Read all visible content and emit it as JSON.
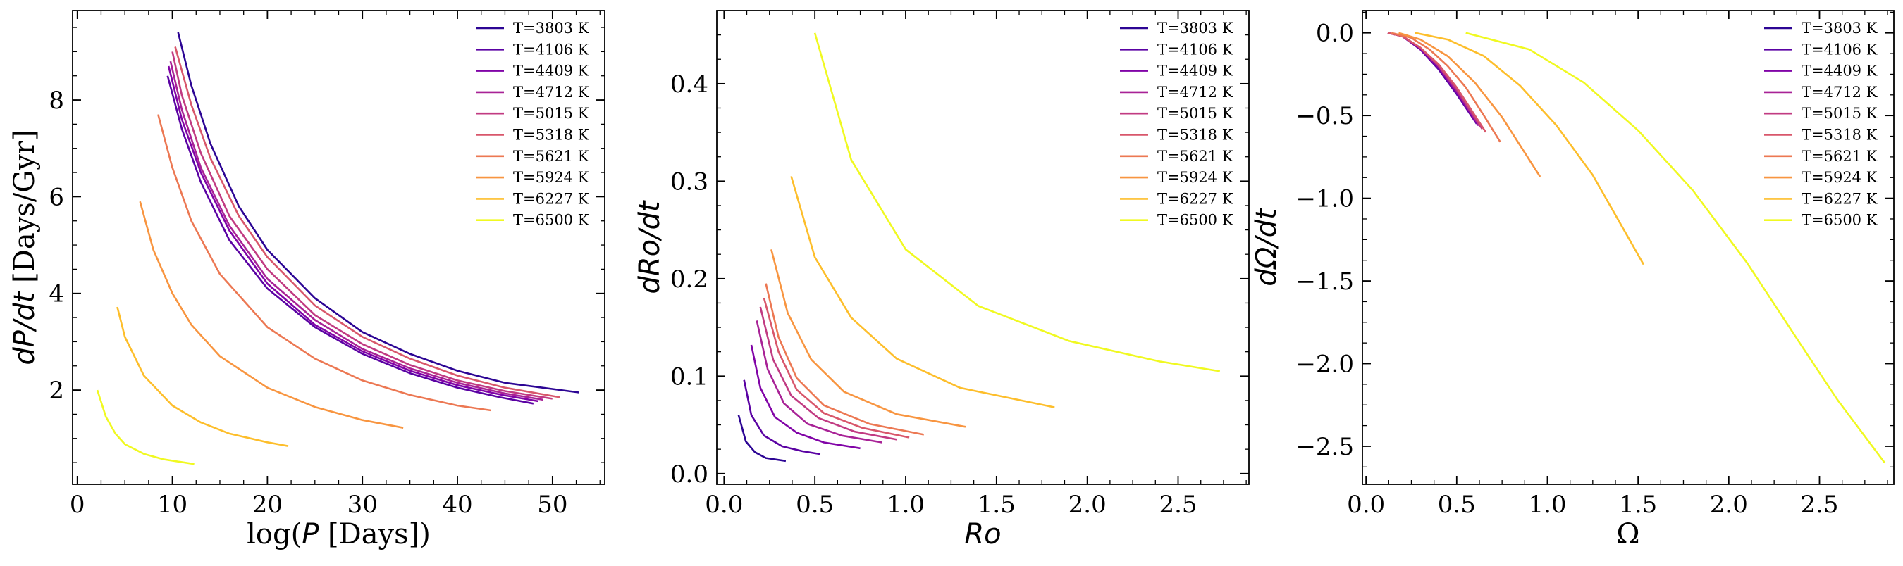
{
  "legend_labels": [
    "T=3803 K",
    "T=4106 K",
    "T=4409 K",
    "T=4712 K",
    "T=5015 K",
    "T=5318 K",
    "T=5621 K",
    "T=5924 K",
    "T=6227 K",
    "T=6500 K"
  ],
  "colors": [
    "#2c0594",
    "#5a02a3",
    "#8104a7",
    "#a82296",
    "#c13b82",
    "#d8576b",
    "#ec7853",
    "#f89540",
    "#fdbe2b",
    "#f0f921"
  ],
  "chart_data": [
    {
      "type": "line",
      "xlabel": "log($P$ [Days])",
      "ylabel": "$dP/dt$ [Days/Gyr]",
      "xlim": [
        -0.5,
        55.5
      ],
      "ylim": [
        0.05,
        9.85
      ],
      "xticks": [
        0,
        10,
        20,
        30,
        40,
        50
      ],
      "xtick_labels": [
        "0",
        "10",
        "20",
        "30",
        "40",
        "50"
      ],
      "yticks": [
        2,
        4,
        6,
        8
      ],
      "ytick_labels": [
        "2",
        "4",
        "6",
        "8"
      ],
      "grid": false,
      "legend_position": "upper right",
      "series": [
        {
          "name": "T=3803 K",
          "x": [
            10.6,
            12,
            14,
            17,
            20,
            25,
            30,
            35,
            40,
            45,
            52.8
          ],
          "y": [
            9.4,
            8.3,
            7.1,
            5.8,
            4.9,
            3.9,
            3.2,
            2.75,
            2.4,
            2.15,
            1.95
          ]
        },
        {
          "name": "T=4106 K",
          "x": [
            9.5,
            11,
            13,
            16,
            20,
            25,
            30,
            35,
            40,
            44.5,
            48
          ],
          "y": [
            8.5,
            7.4,
            6.3,
            5.1,
            4.1,
            3.3,
            2.75,
            2.35,
            2.05,
            1.85,
            1.72
          ]
        },
        {
          "name": "T=4409 K",
          "x": [
            9.6,
            11,
            13,
            16,
            20,
            25,
            30,
            35,
            40,
            44.7,
            48.5
          ],
          "y": [
            8.7,
            7.6,
            6.5,
            5.3,
            4.2,
            3.35,
            2.8,
            2.4,
            2.1,
            1.9,
            1.77
          ]
        },
        {
          "name": "T=4712 K",
          "x": [
            9.8,
            11,
            13,
            16,
            20,
            25,
            30,
            35,
            40,
            45,
            49
          ],
          "y": [
            8.8,
            7.8,
            6.6,
            5.4,
            4.3,
            3.45,
            2.85,
            2.45,
            2.15,
            1.93,
            1.8
          ]
        },
        {
          "name": "T=5015 K",
          "x": [
            10,
            11,
            13,
            16,
            20,
            25,
            30,
            35,
            40,
            45,
            50
          ],
          "y": [
            9.0,
            8.1,
            6.9,
            5.6,
            4.5,
            3.55,
            2.95,
            2.52,
            2.2,
            1.98,
            1.82
          ]
        },
        {
          "name": "T=5318 K",
          "x": [
            10.3,
            12,
            14,
            17,
            20,
            25,
            30,
            35,
            40,
            45,
            50.8
          ],
          "y": [
            9.1,
            7.9,
            6.8,
            5.6,
            4.75,
            3.75,
            3.1,
            2.65,
            2.3,
            2.05,
            1.85
          ]
        },
        {
          "name": "T=5621 K",
          "x": [
            8.5,
            10,
            12,
            15,
            20,
            25,
            30,
            35,
            40,
            43.5
          ],
          "y": [
            7.7,
            6.6,
            5.5,
            4.4,
            3.3,
            2.65,
            2.2,
            1.9,
            1.68,
            1.58
          ]
        },
        {
          "name": "T=5924 K",
          "x": [
            6.6,
            8,
            10,
            12,
            15,
            20,
            25,
            30,
            34.3
          ],
          "y": [
            5.9,
            4.9,
            4.0,
            3.35,
            2.7,
            2.05,
            1.65,
            1.38,
            1.22
          ]
        },
        {
          "name": "T=6227 K",
          "x": [
            4.2,
            5,
            7,
            10,
            13,
            16,
            20,
            22.2
          ],
          "y": [
            3.72,
            3.1,
            2.3,
            1.68,
            1.33,
            1.1,
            0.92,
            0.84
          ]
        },
        {
          "name": "T=6500 K",
          "x": [
            2.1,
            3,
            4,
            5,
            7,
            9,
            12.3
          ],
          "y": [
            2.0,
            1.45,
            1.1,
            0.88,
            0.68,
            0.57,
            0.47
          ]
        }
      ]
    },
    {
      "type": "line",
      "xlabel": "$Ro$",
      "ylabel": "$dRo/dt$",
      "xlim": [
        -0.04,
        2.89
      ],
      "ylim": [
        -0.011,
        0.475
      ],
      "xticks": [
        0,
        0.5,
        1,
        1.5,
        2,
        2.5
      ],
      "xtick_labels": [
        "0.0",
        "0.5",
        "1.0",
        "1.5",
        "2.0",
        "2.5"
      ],
      "yticks": [
        0,
        0.1,
        0.2,
        0.3,
        0.4
      ],
      "ytick_labels": [
        "0.0",
        "0.1",
        "0.2",
        "0.3",
        "0.4"
      ],
      "grid": false,
      "legend_position": "upper right",
      "series": [
        {
          "name": "T=3803 K",
          "x": [
            0.08,
            0.12,
            0.17,
            0.23,
            0.34
          ],
          "y": [
            0.06,
            0.033,
            0.022,
            0.016,
            0.013
          ]
        },
        {
          "name": "T=4106 K",
          "x": [
            0.11,
            0.15,
            0.22,
            0.32,
            0.43,
            0.53
          ],
          "y": [
            0.096,
            0.06,
            0.039,
            0.028,
            0.023,
            0.02
          ]
        },
        {
          "name": "T=4409 K",
          "x": [
            0.15,
            0.2,
            0.28,
            0.4,
            0.55,
            0.75
          ],
          "y": [
            0.132,
            0.088,
            0.058,
            0.042,
            0.032,
            0.026
          ]
        },
        {
          "name": "T=4712 K",
          "x": [
            0.18,
            0.24,
            0.33,
            0.46,
            0.65,
            0.87
          ],
          "y": [
            0.157,
            0.107,
            0.072,
            0.051,
            0.039,
            0.032
          ]
        },
        {
          "name": "T=5015 K",
          "x": [
            0.2,
            0.27,
            0.37,
            0.52,
            0.72,
            0.95
          ],
          "y": [
            0.171,
            0.117,
            0.08,
            0.057,
            0.043,
            0.035
          ]
        },
        {
          "name": "T=5318 K",
          "x": [
            0.22,
            0.3,
            0.4,
            0.55,
            0.76,
            1.02
          ],
          "y": [
            0.18,
            0.125,
            0.086,
            0.062,
            0.047,
            0.037
          ]
        },
        {
          "name": "T=5621 K",
          "x": [
            0.23,
            0.3,
            0.4,
            0.55,
            0.8,
            1.1
          ],
          "y": [
            0.195,
            0.14,
            0.098,
            0.07,
            0.051,
            0.04
          ]
        },
        {
          "name": "T=5924 K",
          "x": [
            0.26,
            0.35,
            0.48,
            0.66,
            0.95,
            1.33
          ],
          "y": [
            0.23,
            0.165,
            0.117,
            0.084,
            0.061,
            0.048
          ]
        },
        {
          "name": "T=6227 K",
          "x": [
            0.37,
            0.5,
            0.7,
            0.95,
            1.3,
            1.82
          ],
          "y": [
            0.305,
            0.222,
            0.16,
            0.118,
            0.088,
            0.068
          ]
        },
        {
          "name": "T=6500 K",
          "x": [
            0.5,
            0.7,
            1.0,
            1.4,
            1.9,
            2.4,
            2.73
          ],
          "y": [
            0.452,
            0.322,
            0.23,
            0.172,
            0.136,
            0.115,
            0.105
          ]
        }
      ]
    },
    {
      "type": "line",
      "xlabel": "Ω",
      "ylabel": "$dΩ/dt$",
      "xlim": [
        -0.02,
        2.91
      ],
      "ylim": [
        -2.73,
        0.135
      ],
      "xticks": [
        0,
        0.5,
        1,
        1.5,
        2,
        2.5
      ],
      "xtick_labels": [
        "0.0",
        "0.5",
        "1.0",
        "1.5",
        "2.0",
        "2.5"
      ],
      "yticks": [
        0,
        -0.5,
        -1,
        -1.5,
        -2,
        -2.5
      ],
      "ytick_labels": [
        "0.0",
        "−0.5",
        "−1.0",
        "−1.5",
        "−2.0",
        "−2.5"
      ],
      "grid": false,
      "legend_position": "upper right",
      "series": [
        {
          "name": "T=3803 K",
          "x": [
            0.12,
            0.2,
            0.3,
            0.4,
            0.5,
            0.6
          ],
          "y": [
            0.0,
            -0.02,
            -0.1,
            -0.22,
            -0.37,
            -0.53
          ]
        },
        {
          "name": "T=4106 K",
          "x": [
            0.12,
            0.2,
            0.3,
            0.4,
            0.5,
            0.61
          ],
          "y": [
            0.0,
            -0.02,
            -0.1,
            -0.22,
            -0.37,
            -0.55
          ]
        },
        {
          "name": "T=4409 K",
          "x": [
            0.12,
            0.2,
            0.3,
            0.4,
            0.5,
            0.62
          ],
          "y": [
            0.0,
            -0.02,
            -0.1,
            -0.21,
            -0.36,
            -0.56
          ]
        },
        {
          "name": "T=4712 K",
          "x": [
            0.12,
            0.2,
            0.3,
            0.4,
            0.5,
            0.63
          ],
          "y": [
            0.0,
            -0.02,
            -0.09,
            -0.2,
            -0.35,
            -0.57
          ]
        },
        {
          "name": "T=5015 K",
          "x": [
            0.12,
            0.2,
            0.3,
            0.4,
            0.5,
            0.64
          ],
          "y": [
            0.0,
            -0.02,
            -0.09,
            -0.2,
            -0.34,
            -0.58
          ]
        },
        {
          "name": "T=5318 K",
          "x": [
            0.12,
            0.2,
            0.3,
            0.4,
            0.5,
            0.66
          ],
          "y": [
            0.0,
            -0.02,
            -0.09,
            -0.19,
            -0.33,
            -0.6
          ]
        },
        {
          "name": "T=5621 K",
          "x": [
            0.14,
            0.25,
            0.35,
            0.45,
            0.55,
            0.65,
            0.74
          ],
          "y": [
            0.0,
            -0.03,
            -0.1,
            -0.2,
            -0.33,
            -0.5,
            -0.66
          ]
        },
        {
          "name": "T=5924 K",
          "x": [
            0.18,
            0.3,
            0.45,
            0.6,
            0.75,
            0.96
          ],
          "y": [
            0.0,
            -0.04,
            -0.14,
            -0.3,
            -0.51,
            -0.87
          ]
        },
        {
          "name": "T=6227 K",
          "x": [
            0.27,
            0.45,
            0.65,
            0.85,
            1.05,
            1.25,
            1.53
          ],
          "y": [
            0.0,
            -0.04,
            -0.14,
            -0.32,
            -0.56,
            -0.86,
            -1.4
          ]
        },
        {
          "name": "T=6500 K",
          "x": [
            0.55,
            0.9,
            1.2,
            1.5,
            1.8,
            2.1,
            2.4,
            2.6,
            2.86
          ],
          "y": [
            0.0,
            -0.1,
            -0.3,
            -0.59,
            -0.95,
            -1.39,
            -1.89,
            -2.22,
            -2.6
          ]
        }
      ]
    }
  ]
}
